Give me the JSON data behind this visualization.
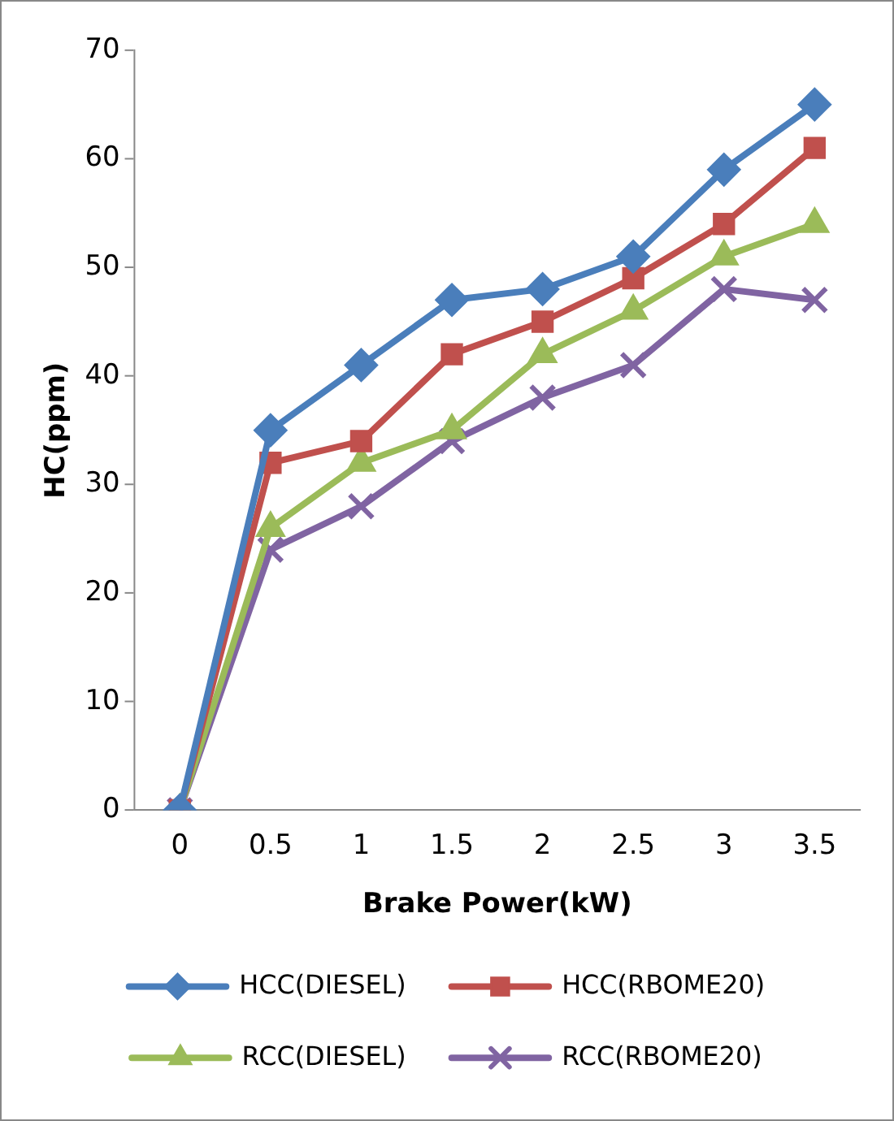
{
  "chart_data": {
    "type": "line",
    "xlabel": "Brake Power(kW)",
    "ylabel": "HC(ppm)",
    "categories": [
      "0",
      "0.5",
      "1",
      "1.5",
      "2",
      "2.5",
      "3",
      "3.5"
    ],
    "series": [
      {
        "name": "HCC(DIESEL)",
        "color": "#4a7ebb",
        "marker": "diamond",
        "values": [
          0,
          35,
          41,
          47,
          48,
          51,
          59,
          65
        ]
      },
      {
        "name": "HCC(RBOME20)",
        "color": "#c0504d",
        "marker": "square",
        "values": [
          0,
          32,
          34,
          42,
          45,
          49,
          54,
          61
        ]
      },
      {
        "name": "RCC(DIESEL)",
        "color": "#9bbb59",
        "marker": "triangle",
        "values": [
          0,
          26,
          32,
          35,
          42,
          46,
          51,
          54
        ]
      },
      {
        "name": "RCC(RBOME20)",
        "color": "#8064a2",
        "marker": "cross",
        "values": [
          0,
          24,
          28,
          34,
          38,
          41,
          48,
          47
        ]
      }
    ],
    "ylim": [
      0,
      70
    ],
    "yticks": [
      0,
      10,
      20,
      30,
      40,
      50,
      60,
      70
    ],
    "grid": false,
    "legend": "bottom"
  }
}
